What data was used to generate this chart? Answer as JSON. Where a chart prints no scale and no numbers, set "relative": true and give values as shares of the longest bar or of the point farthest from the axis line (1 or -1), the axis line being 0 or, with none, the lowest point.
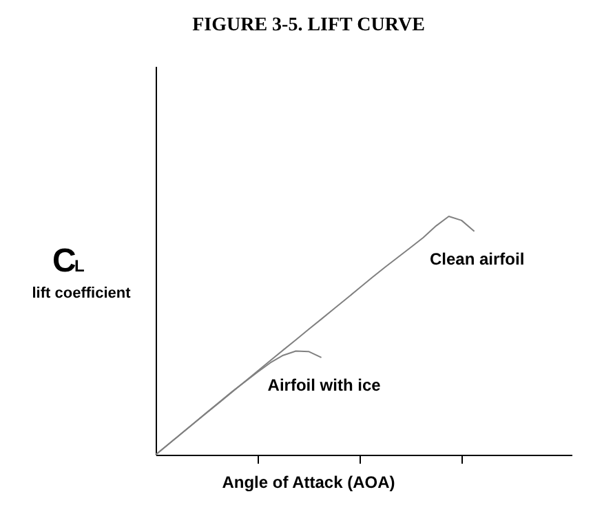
{
  "chart_data": {
    "type": "line",
    "title": "FIGURE 3-5. LIFT CURVE",
    "xlabel": "Angle of Attack (AOA)",
    "ylabel": "C$_{L}$\nlift coefficient",
    "relative": true,
    "categories": [
      null,
      null,
      null,
      null,
      null,
      null,
      null,
      null,
      null,
      null,
      null,
      null,
      null,
      null,
      null,
      null,
      null,
      null,
      null,
      null,
      null,
      null,
      null,
      null,
      null,
      null,
      null,
      null,
      null,
      null,
      null,
      null,
      null
    ],
    "series": [
      {
        "name": "Clean airfoil",
        "color": "#808080",
        "values": [
          0,
          0.044,
          0.088,
          0.132,
          0.176,
          0.219,
          0.263,
          0.307,
          0.351,
          0.395,
          0.439,
          0.482,
          0.526,
          0.569,
          0.613,
          0.656,
          0.7,
          0.744,
          0.787,
          0.828,
          0.869,
          0.911,
          0.96,
          1.0,
          0.983,
          0.937,
          null,
          null,
          null,
          null,
          null,
          null,
          null
        ]
      },
      {
        "name": "Airfoil with ice",
        "color": "#808080",
        "values": [
          0,
          0.044,
          0.088,
          0.132,
          0.177,
          0.221,
          0.265,
          0.306,
          0.347,
          0.386,
          0.417,
          0.435,
          0.433,
          0.408,
          null,
          null,
          null,
          null,
          null,
          null,
          null,
          null,
          null,
          null,
          null,
          null,
          null,
          null,
          null,
          null,
          null,
          null,
          null
        ]
      }
    ],
    "grid": false,
    "legend": false,
    "marker": "none",
    "line_style": "solid"
  }
}
